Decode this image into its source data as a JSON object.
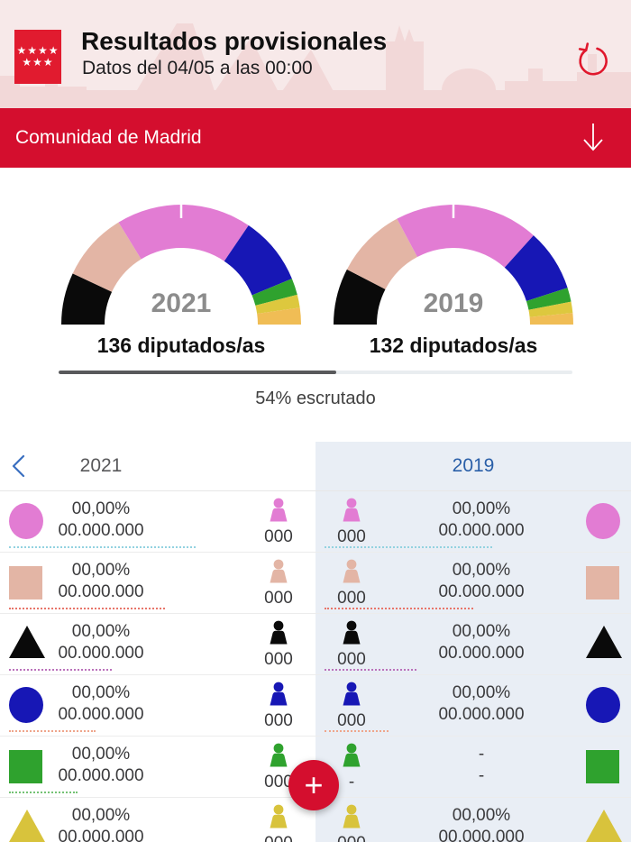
{
  "header": {
    "title": "Resultados provisionales",
    "subtitle": "Datos del 04/05 a las 00:00",
    "logo": {
      "stars_top": "★★★★",
      "stars_bottom": "★★★",
      "bg": "#e11b2f"
    },
    "bg": "#f7e9e9",
    "skyline_color": "#f2d8d8",
    "refresh_color": "#e0182d"
  },
  "region_bar": {
    "label": "Comunidad de Madrid",
    "bg": "#d40e2e"
  },
  "progress": {
    "percent": 54,
    "label": "54% escrutado",
    "fill_color": "#58595b",
    "track_color": "#e9edf0"
  },
  "comparison": {
    "left_year": "2021",
    "right_year": "2019",
    "right_col_bg": "#e9eef5",
    "rows": [
      {
        "party": "pink-party",
        "color": "#e27cd3",
        "shape": "circle",
        "underline_color": "#93d2e0",
        "left": {
          "percent": "00,00%",
          "votes": "00.000.000",
          "seats": "000",
          "underline_w": 207
        },
        "right": {
          "percent": "00,00%",
          "votes": "00.000.000",
          "seats": "000",
          "underline_w": 186
        }
      },
      {
        "party": "salmon-party",
        "color": "#e3b5a5",
        "shape": "square",
        "underline_color": "#e8756a",
        "left": {
          "percent": "00,00%",
          "votes": "00.000.000",
          "seats": "000",
          "underline_w": 173
        },
        "right": {
          "percent": "00,00%",
          "votes": "00.000.000",
          "seats": "000",
          "underline_w": 165
        }
      },
      {
        "party": "black-party",
        "color": "#0a0a0a",
        "shape": "triangle",
        "underline_color": "#bb71bb",
        "left": {
          "percent": "00,00%",
          "votes": "00.000.000",
          "seats": "000",
          "underline_w": 114
        },
        "right": {
          "percent": "00,00%",
          "votes": "00.000.000",
          "seats": "000",
          "underline_w": 102
        }
      },
      {
        "party": "blue-party",
        "color": "#1717b5",
        "shape": "circle",
        "underline_color": "#efa58b",
        "left": {
          "percent": "00,00%",
          "votes": "00.000.000",
          "seats": "000",
          "underline_w": 96
        },
        "right": {
          "percent": "00,00%",
          "votes": "00.000.000",
          "seats": "000",
          "underline_w": 71
        }
      },
      {
        "party": "green-party",
        "color": "#2fa22e",
        "shape": "square",
        "underline_color": "#74c274",
        "left": {
          "percent": "00,00%",
          "votes": "00.000.000",
          "seats": "000",
          "underline_w": 76
        },
        "right": {
          "percent": "-",
          "votes": "-",
          "seats": "-",
          "underline_w": 0
        }
      },
      {
        "party": "yellow-party",
        "color": "#d8c33c",
        "shape": "triangle",
        "underline_color": "#d8c33c",
        "left": {
          "percent": "00,00%",
          "votes": "00.000.000",
          "seats": "000",
          "underline_w": 0
        },
        "right": {
          "percent": "00,00%",
          "votes": "00.000.000",
          "seats": "000",
          "underline_w": 0
        }
      }
    ]
  },
  "fab": {
    "label": "+",
    "bg": "#d40e2e"
  },
  "chart_data": [
    {
      "type": "pie",
      "variant": "half-donut-gauge",
      "title": "2021",
      "subtitle": "136 diputados/as",
      "marker": "white tick at center (majority threshold)",
      "segments": [
        {
          "name": "black-party",
          "color": "#0a0a0a",
          "fraction": 0.14
        },
        {
          "name": "salmon-party",
          "color": "#e3b5a5",
          "fraction": 0.185
        },
        {
          "name": "pink-party",
          "color": "#e27cd3",
          "fraction": 0.365
        },
        {
          "name": "blue-party",
          "color": "#1717b5",
          "fraction": 0.185
        },
        {
          "name": "green-party",
          "color": "#2fa22e",
          "fraction": 0.045
        },
        {
          "name": "yellow-party",
          "color": "#ddc83e",
          "fraction": 0.035
        },
        {
          "name": "orange-party",
          "color": "#f0bd55",
          "fraction": 0.045
        }
      ]
    },
    {
      "type": "pie",
      "variant": "half-donut-gauge",
      "title": "2019",
      "subtitle": "132 diputados/as",
      "marker": "white tick at center (majority threshold)",
      "segments": [
        {
          "name": "black-party",
          "color": "#0a0a0a",
          "fraction": 0.152
        },
        {
          "name": "salmon-party",
          "color": "#e3b5a5",
          "fraction": 0.192
        },
        {
          "name": "pink-party",
          "color": "#e27cd3",
          "fraction": 0.389
        },
        {
          "name": "blue-party",
          "color": "#1717b5",
          "fraction": 0.168
        },
        {
          "name": "green-party",
          "color": "#2fa22e",
          "fraction": 0.038
        },
        {
          "name": "yellow-party",
          "color": "#ddc83e",
          "fraction": 0.03
        },
        {
          "name": "orange-party",
          "color": "#f0bd55",
          "fraction": 0.031
        }
      ]
    }
  ]
}
